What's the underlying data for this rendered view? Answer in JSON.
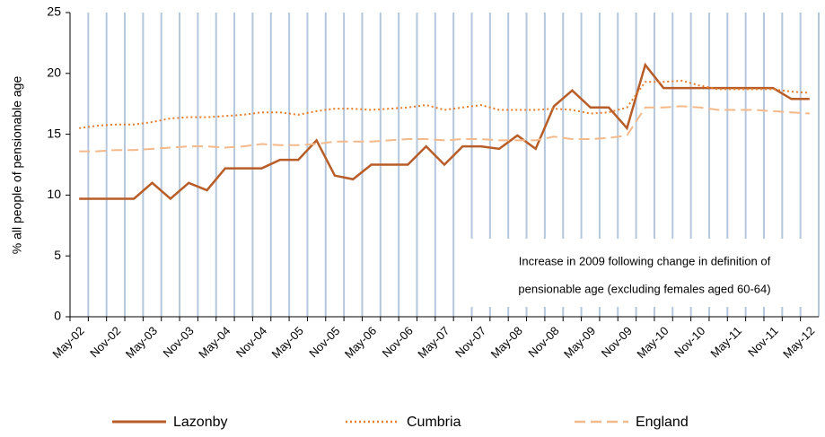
{
  "chart_data": {
    "type": "line",
    "y_label": "% all people of pensionable age",
    "annotation": [
      "Increase in 2009 following change in definition of",
      "pensionable age (excluding females aged 60-64)"
    ],
    "categories": [
      "May-02",
      null,
      "Nov-02",
      null,
      "May-03",
      null,
      "Nov-03",
      null,
      "May-04",
      null,
      "Nov-04",
      null,
      "May-05",
      null,
      "Nov-05",
      null,
      "May-06",
      null,
      "Nov-06",
      null,
      "May-07",
      null,
      "Nov-07",
      null,
      "May-08",
      null,
      "Nov-08",
      null,
      "May-09",
      null,
      "Nov-09",
      null,
      "May-10",
      null,
      "Nov-10",
      null,
      "May-11",
      null,
      "Nov-11",
      null,
      "May-12"
    ],
    "series": [
      {
        "name": "Lazonby",
        "color": "#b85d27",
        "style": "solid",
        "values": [
          9.7,
          9.7,
          9.7,
          9.7,
          11,
          9.7,
          11,
          10.4,
          12.2,
          12.2,
          12.2,
          12.9,
          12.9,
          14.5,
          11.6,
          11.3,
          12.5,
          12.5,
          12.5,
          14,
          12.5,
          14,
          14,
          13.8,
          14.9,
          13.8,
          17.3,
          18.6,
          17.2,
          17.2,
          15.5,
          20.7,
          18.8,
          18.8,
          18.8,
          18.8,
          18.8,
          18.8,
          18.8,
          17.9,
          17.9
        ]
      },
      {
        "name": "Cumbria",
        "color": "#e87d2c",
        "style": "dotted",
        "values": [
          15.5,
          15.7,
          15.8,
          15.8,
          16.0,
          16.3,
          16.4,
          16.4,
          16.5,
          16.6,
          16.8,
          16.8,
          16.6,
          16.9,
          17.1,
          17.1,
          17.0,
          17.1,
          17.2,
          17.4,
          17.0,
          17.2,
          17.4,
          17.0,
          17.0,
          17.0,
          17.1,
          17.0,
          16.7,
          16.8,
          17.2,
          19.3,
          19.3,
          19.4,
          19.0,
          18.7,
          18.7,
          18.7,
          18.7,
          18.5,
          18.4
        ]
      },
      {
        "name": "England",
        "color": "#f4b98a",
        "style": "dashed",
        "values": [
          13.6,
          13.6,
          13.7,
          13.7,
          13.8,
          13.9,
          14.0,
          14.0,
          13.9,
          14.0,
          14.2,
          14.1,
          14.1,
          14.2,
          14.4,
          14.4,
          14.4,
          14.5,
          14.6,
          14.6,
          14.5,
          14.6,
          14.6,
          14.5,
          14.5,
          14.5,
          14.8,
          14.6,
          14.6,
          14.7,
          14.9,
          17.2,
          17.2,
          17.3,
          17.2,
          17.0,
          17.0,
          17.0,
          16.9,
          16.8,
          16.7
        ]
      }
    ],
    "ylim": [
      0,
      25
    ],
    "yticks": [
      0,
      5,
      10,
      15,
      20,
      25
    ],
    "grid": "x",
    "grid_color": "#b4c7dc",
    "legend": "bottom"
  }
}
